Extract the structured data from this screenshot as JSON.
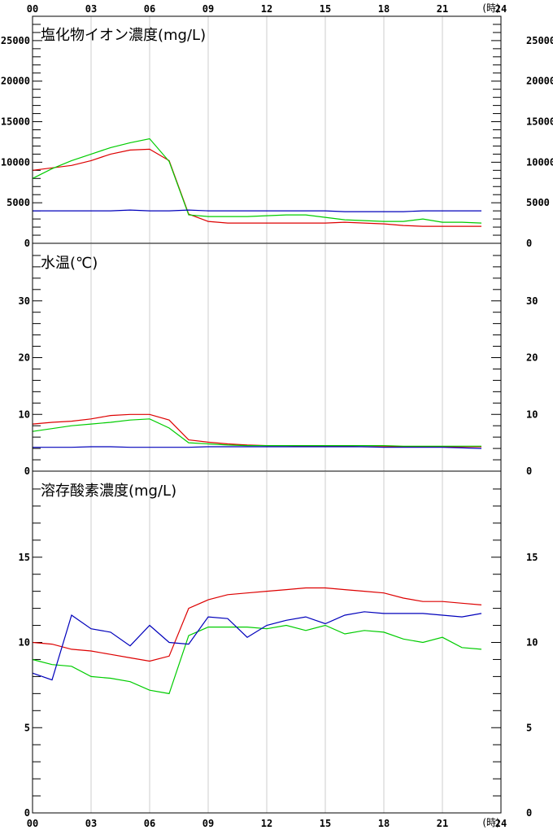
{
  "x_axis": {
    "ticks": [
      "00",
      "03",
      "06",
      "09",
      "12",
      "15",
      "18",
      "21",
      "24"
    ],
    "unit": "(時)",
    "range": [
      0,
      24
    ]
  },
  "colors": {
    "red": "#dd0000",
    "green": "#00cc00",
    "blue": "#0000bb"
  },
  "chart_data": [
    {
      "type": "line",
      "title": "塩化物イオン濃度(mg/L)",
      "ylim": [
        0,
        28000
      ],
      "yticks_left": [
        "25000",
        "20000",
        "15000",
        "10000",
        "5000",
        "0"
      ],
      "yticks_right": [
        "25000",
        "20000",
        "15000",
        "10000",
        "5000",
        "0"
      ],
      "ytick_values": [
        25000,
        20000,
        15000,
        10000,
        5000,
        0
      ],
      "minor_step": 1000,
      "x": [
        0,
        1,
        2,
        3,
        4,
        5,
        6,
        7,
        8,
        9,
        10,
        11,
        12,
        13,
        14,
        15,
        16,
        17,
        18,
        19,
        20,
        21,
        22,
        23
      ],
      "series": [
        {
          "color": "red",
          "values": [
            9000,
            9300,
            9600,
            10200,
            11000,
            11500,
            11600,
            10200,
            3600,
            2700,
            2500,
            2500,
            2500,
            2500,
            2500,
            2500,
            2600,
            2500,
            2400,
            2200,
            2100,
            2100,
            2100,
            2100
          ]
        },
        {
          "color": "green",
          "values": [
            8000,
            9200,
            10200,
            11000,
            11800,
            12400,
            12900,
            10100,
            3500,
            3300,
            3300,
            3300,
            3400,
            3500,
            3500,
            3200,
            2900,
            2800,
            2700,
            2700,
            3000,
            2600,
            2600,
            2500
          ]
        },
        {
          "color": "blue",
          "values": [
            4000,
            4000,
            4000,
            4000,
            4000,
            4100,
            4000,
            4000,
            4100,
            4000,
            4000,
            4000,
            4000,
            4000,
            4000,
            4000,
            3900,
            3900,
            3900,
            3900,
            4000,
            4000,
            4000,
            4000
          ]
        }
      ]
    },
    {
      "type": "line",
      "title": "水温(℃)",
      "ylim": [
        0,
        40
      ],
      "yticks_left": [
        "30",
        "20",
        "10",
        "0"
      ],
      "yticks_right": [
        "30",
        "20",
        "10",
        "0"
      ],
      "ytick_values": [
        30,
        20,
        10,
        0
      ],
      "minor_step": 2,
      "x": [
        0,
        1,
        2,
        3,
        4,
        5,
        6,
        7,
        8,
        9,
        10,
        11,
        12,
        13,
        14,
        15,
        16,
        17,
        18,
        19,
        20,
        21,
        22,
        23
      ],
      "series": [
        {
          "color": "red",
          "values": [
            8.3,
            8.6,
            8.8,
            9.2,
            9.8,
            10.0,
            10.0,
            9.0,
            5.5,
            5.1,
            4.8,
            4.6,
            4.5,
            4.5,
            4.4,
            4.4,
            4.4,
            4.3,
            4.3,
            4.3,
            4.3,
            4.3,
            4.3,
            4.3
          ]
        },
        {
          "color": "green",
          "values": [
            7.0,
            7.5,
            8.0,
            8.3,
            8.6,
            9.0,
            9.2,
            7.6,
            5.0,
            4.8,
            4.6,
            4.5,
            4.5,
            4.5,
            4.5,
            4.5,
            4.5,
            4.5,
            4.5,
            4.4,
            4.4,
            4.4,
            4.4,
            4.4
          ]
        },
        {
          "color": "blue",
          "values": [
            4.2,
            4.2,
            4.2,
            4.3,
            4.3,
            4.2,
            4.2,
            4.2,
            4.2,
            4.3,
            4.3,
            4.3,
            4.3,
            4.3,
            4.3,
            4.3,
            4.3,
            4.3,
            4.2,
            4.2,
            4.2,
            4.2,
            4.1,
            4.0
          ]
        }
      ]
    },
    {
      "type": "line",
      "title": "溶存酸素濃度(mg/L)",
      "ylim": [
        0,
        20
      ],
      "yticks_left": [
        "15",
        "10",
        "5",
        "0"
      ],
      "yticks_right": [
        "15",
        "10",
        "5",
        "0"
      ],
      "ytick_values": [
        15,
        10,
        5,
        0
      ],
      "minor_step": 1,
      "x": [
        0,
        1,
        2,
        3,
        4,
        5,
        6,
        7,
        8,
        9,
        10,
        11,
        12,
        13,
        14,
        15,
        16,
        17,
        18,
        19,
        20,
        21,
        22,
        23
      ],
      "series": [
        {
          "color": "red",
          "values": [
            10.0,
            9.9,
            9.6,
            9.5,
            9.3,
            9.1,
            8.9,
            9.2,
            12.0,
            12.5,
            12.8,
            12.9,
            13.0,
            13.1,
            13.2,
            13.2,
            13.1,
            13.0,
            12.9,
            12.6,
            12.4,
            12.4,
            12.3,
            12.2
          ]
        },
        {
          "color": "green",
          "values": [
            9.0,
            8.7,
            8.6,
            8.0,
            7.9,
            7.7,
            7.2,
            7.0,
            10.4,
            10.9,
            10.9,
            10.9,
            10.8,
            11.0,
            10.7,
            11.0,
            10.5,
            10.7,
            10.6,
            10.2,
            10.0,
            10.3,
            9.7,
            9.6
          ]
        },
        {
          "color": "blue",
          "values": [
            8.2,
            7.8,
            11.6,
            10.8,
            10.6,
            9.8,
            11.0,
            10.0,
            9.9,
            11.5,
            11.4,
            10.3,
            11.0,
            11.3,
            11.5,
            11.1,
            11.6,
            11.8,
            11.7,
            11.7,
            11.7,
            11.6,
            11.5,
            11.7
          ]
        }
      ]
    }
  ]
}
